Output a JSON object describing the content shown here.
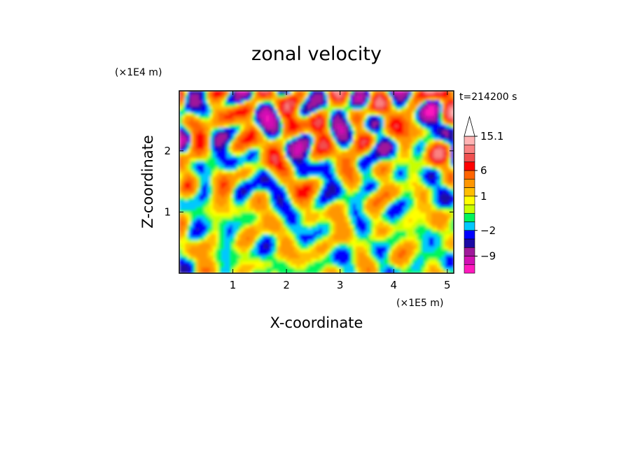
{
  "chart_data": {
    "type": "heatmap",
    "title": "zonal velocity",
    "xlabel": "X-coordinate",
    "ylabel": "Z-coordinate",
    "x_unit": "(×1E5 m)",
    "y_unit": "(×1E4 m)",
    "time_label": "t=214200 s",
    "xlim": [
      0,
      5.12
    ],
    "ylim": [
      0,
      2.98
    ],
    "x_ticks": [
      1,
      2,
      3,
      4,
      5
    ],
    "y_ticks": [
      1,
      2
    ],
    "colorbar": {
      "labels": [
        "15.1",
        "6",
        "1",
        "−2",
        "−9"
      ],
      "label_values": [
        15.1,
        6,
        1,
        -2,
        -9
      ],
      "levels": [
        {
          "color": "#ff19be",
          "low": -15,
          "high": -12
        },
        {
          "color": "#d210b4",
          "low": -12,
          "high": -9
        },
        {
          "color": "#a0199b",
          "low": -9,
          "high": -6
        },
        {
          "color": "#1b0aa5",
          "low": -6,
          "high": -4
        },
        {
          "color": "#0000ff",
          "low": -4,
          "high": -2
        },
        {
          "color": "#00c8ff",
          "low": -2,
          "high": -1
        },
        {
          "color": "#00f55a",
          "low": -1,
          "high": 0
        },
        {
          "color": "#c8ff00",
          "low": 0,
          "high": 0.5
        },
        {
          "color": "#ffff00",
          "low": 0.5,
          "high": 1
        },
        {
          "color": "#ffbe00",
          "low": 1,
          "high": 2
        },
        {
          "color": "#ff9600",
          "low": 2,
          "high": 4
        },
        {
          "color": "#ff6400",
          "low": 4,
          "high": 6
        },
        {
          "color": "#ff0000",
          "low": 6,
          "high": 8
        },
        {
          "color": "#f05050",
          "low": 8,
          "high": 10
        },
        {
          "color": "#fa8282",
          "low": 10,
          "high": 12.5
        },
        {
          "color": "#ffb4b4",
          "low": 12.5,
          "high": 15.1
        }
      ],
      "extend_max": true
    }
  }
}
